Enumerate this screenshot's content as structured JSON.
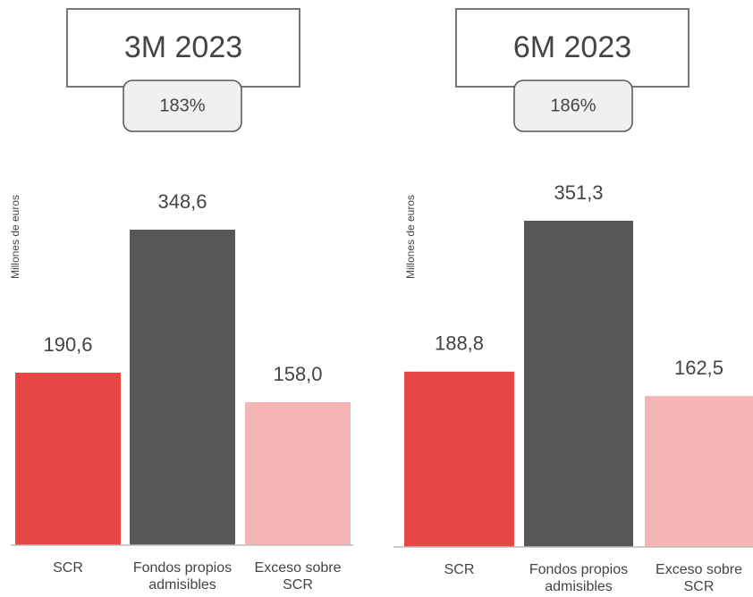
{
  "chart_data": [
    {
      "type": "bar",
      "title": "3M 2023",
      "annotation": "183%",
      "y_label": "Millones de euros",
      "categories": [
        "SCR",
        "Fondos propios admisibles",
        "Exceso sobre SCR"
      ],
      "values": [
        190.6,
        348.6,
        158.0
      ],
      "value_labels": [
        "190,6",
        "348,6",
        "158,0"
      ],
      "colors": [
        "#e84545",
        "#575757",
        "#f5b5b5"
      ]
    },
    {
      "type": "bar",
      "title": "6M 2023",
      "annotation": "186%",
      "y_label": "Millones de euros",
      "categories": [
        "SCR",
        "Fondos propios admisibles",
        "Exceso sobre SCR"
      ],
      "values": [
        188.8,
        351.3,
        162.5
      ],
      "value_labels": [
        "188,8",
        "351,3",
        "162,5"
      ],
      "colors": [
        "#e84545",
        "#575757",
        "#f5b5b5"
      ]
    }
  ]
}
